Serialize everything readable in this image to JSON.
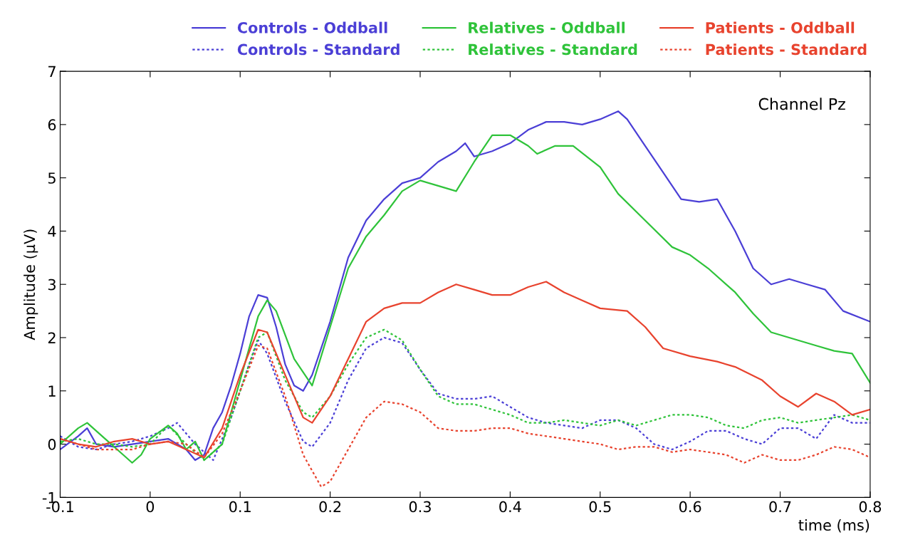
{
  "chart_data": {
    "type": "line",
    "ylabel": "Amplitude (µV)",
    "xlabel": "time (ms)",
    "annotations": [
      "Channel Pz"
    ],
    "xlim": [
      -0.1,
      0.8
    ],
    "xticks": [
      -0.1,
      0,
      0.1,
      0.2,
      0.3,
      0.4,
      0.5,
      0.6,
      0.7,
      0.8
    ],
    "ylim": [
      -1,
      7
    ],
    "yticks": [
      -1,
      0,
      1,
      2,
      3,
      4,
      5,
      6,
      7
    ],
    "grid": false,
    "legend": "top",
    "marker": "none",
    "series": [
      {
        "name": "Controls - Oddball",
        "color": "#4b3fd6",
        "line_style": "solid",
        "x": [
          -0.1,
          -0.08,
          -0.07,
          -0.06,
          -0.04,
          -0.02,
          0,
          0.02,
          0.03,
          0.04,
          0.05,
          0.06,
          0.07,
          0.08,
          0.09,
          0.1,
          0.11,
          0.12,
          0.13,
          0.14,
          0.15,
          0.16,
          0.17,
          0.18,
          0.2,
          0.22,
          0.24,
          0.26,
          0.28,
          0.3,
          0.32,
          0.34,
          0.35,
          0.36,
          0.38,
          0.4,
          0.42,
          0.44,
          0.46,
          0.48,
          0.5,
          0.52,
          0.53,
          0.55,
          0.57,
          0.59,
          0.61,
          0.63,
          0.65,
          0.67,
          0.69,
          0.71,
          0.73,
          0.75,
          0.77,
          0.8
        ],
        "values": [
          -0.1,
          0.15,
          0.3,
          0.0,
          -0.05,
          0.0,
          0.05,
          0.1,
          0.0,
          -0.1,
          -0.3,
          -0.2,
          0.3,
          0.6,
          1.1,
          1.7,
          2.4,
          2.8,
          2.75,
          2.2,
          1.5,
          1.1,
          1.0,
          1.3,
          2.3,
          3.5,
          4.2,
          4.6,
          4.9,
          5.0,
          5.3,
          5.5,
          5.65,
          5.4,
          5.5,
          5.65,
          5.9,
          6.05,
          6.05,
          6.0,
          6.1,
          6.25,
          6.1,
          5.6,
          5.1,
          4.6,
          4.55,
          4.6,
          4.0,
          3.3,
          3.0,
          3.1,
          3.0,
          2.9,
          2.5,
          2.3
        ]
      },
      {
        "name": "Controls - Standard",
        "color": "#4b3fd6",
        "line_style": "dotted",
        "x": [
          -0.1,
          -0.08,
          -0.06,
          -0.04,
          -0.02,
          0,
          0.02,
          0.03,
          0.05,
          0.07,
          0.09,
          0.11,
          0.12,
          0.13,
          0.15,
          0.17,
          0.18,
          0.2,
          0.22,
          0.24,
          0.26,
          0.28,
          0.3,
          0.32,
          0.34,
          0.36,
          0.38,
          0.4,
          0.42,
          0.44,
          0.46,
          0.48,
          0.5,
          0.52,
          0.54,
          0.56,
          0.58,
          0.6,
          0.62,
          0.64,
          0.66,
          0.68,
          0.7,
          0.72,
          0.74,
          0.76,
          0.78,
          0.8
        ],
        "values": [
          0.15,
          -0.05,
          -0.1,
          0.0,
          0.05,
          0.15,
          0.3,
          0.4,
          0.0,
          -0.3,
          0.5,
          1.5,
          1.95,
          1.7,
          0.8,
          0.05,
          -0.05,
          0.4,
          1.2,
          1.8,
          2.0,
          1.9,
          1.4,
          0.95,
          0.85,
          0.85,
          0.9,
          0.7,
          0.5,
          0.4,
          0.35,
          0.3,
          0.45,
          0.45,
          0.3,
          0.0,
          -0.1,
          0.05,
          0.25,
          0.25,
          0.1,
          0.0,
          0.3,
          0.3,
          0.1,
          0.55,
          0.4,
          0.4
        ]
      },
      {
        "name": "Relatives - Oddball",
        "color": "#2fc33a",
        "line_style": "solid",
        "x": [
          -0.1,
          -0.08,
          -0.07,
          -0.05,
          -0.03,
          -0.02,
          -0.01,
          0,
          0.02,
          0.03,
          0.04,
          0.05,
          0.06,
          0.08,
          0.1,
          0.12,
          0.13,
          0.14,
          0.16,
          0.18,
          0.2,
          0.22,
          0.24,
          0.26,
          0.28,
          0.3,
          0.32,
          0.34,
          0.36,
          0.38,
          0.4,
          0.42,
          0.43,
          0.45,
          0.47,
          0.5,
          0.52,
          0.55,
          0.58,
          0.6,
          0.62,
          0.65,
          0.67,
          0.69,
          0.71,
          0.74,
          0.76,
          0.78,
          0.8
        ],
        "values": [
          0.0,
          0.3,
          0.4,
          0.1,
          -0.2,
          -0.35,
          -0.2,
          0.1,
          0.35,
          0.2,
          -0.1,
          0.05,
          -0.3,
          0.0,
          1.2,
          2.4,
          2.7,
          2.5,
          1.6,
          1.1,
          2.2,
          3.3,
          3.9,
          4.3,
          4.75,
          4.95,
          4.85,
          4.75,
          5.3,
          5.8,
          5.8,
          5.6,
          5.45,
          5.6,
          5.6,
          5.2,
          4.7,
          4.2,
          3.7,
          3.55,
          3.3,
          2.85,
          2.45,
          2.1,
          2.0,
          1.85,
          1.75,
          1.7,
          1.15
        ]
      },
      {
        "name": "Relatives - Standard",
        "color": "#2fc33a",
        "line_style": "dotted",
        "x": [
          -0.1,
          -0.08,
          -0.06,
          -0.04,
          -0.02,
          0,
          0.02,
          0.04,
          0.06,
          0.08,
          0.1,
          0.12,
          0.13,
          0.15,
          0.17,
          0.18,
          0.2,
          0.22,
          0.24,
          0.26,
          0.28,
          0.3,
          0.32,
          0.34,
          0.36,
          0.38,
          0.4,
          0.42,
          0.44,
          0.46,
          0.48,
          0.5,
          0.52,
          0.54,
          0.56,
          0.58,
          0.6,
          0.62,
          0.64,
          0.66,
          0.68,
          0.7,
          0.72,
          0.74,
          0.76,
          0.78,
          0.8
        ],
        "values": [
          0.05,
          0.1,
          0.0,
          0.0,
          -0.05,
          0.0,
          0.35,
          0.0,
          -0.3,
          0.0,
          1.0,
          2.0,
          2.1,
          1.2,
          0.6,
          0.5,
          0.9,
          1.5,
          2.0,
          2.15,
          1.95,
          1.4,
          0.9,
          0.75,
          0.75,
          0.65,
          0.55,
          0.4,
          0.4,
          0.45,
          0.4,
          0.35,
          0.45,
          0.35,
          0.45,
          0.55,
          0.55,
          0.5,
          0.35,
          0.3,
          0.45,
          0.5,
          0.4,
          0.45,
          0.5,
          0.55,
          0.45
        ]
      },
      {
        "name": "Patients - Oddball",
        "color": "#e8432e",
        "line_style": "solid",
        "x": [
          -0.1,
          -0.08,
          -0.06,
          -0.04,
          -0.02,
          0,
          0.02,
          0.04,
          0.06,
          0.08,
          0.1,
          0.12,
          0.13,
          0.15,
          0.17,
          0.18,
          0.2,
          0.22,
          0.24,
          0.26,
          0.28,
          0.3,
          0.32,
          0.34,
          0.36,
          0.38,
          0.4,
          0.42,
          0.44,
          0.46,
          0.48,
          0.5,
          0.53,
          0.55,
          0.57,
          0.6,
          0.63,
          0.65,
          0.68,
          0.7,
          0.72,
          0.74,
          0.76,
          0.78,
          0.8
        ],
        "values": [
          0.1,
          0.0,
          -0.05,
          0.05,
          0.1,
          0.0,
          0.05,
          -0.1,
          -0.25,
          0.3,
          1.3,
          2.15,
          2.1,
          1.3,
          0.5,
          0.4,
          0.9,
          1.6,
          2.3,
          2.55,
          2.65,
          2.65,
          2.85,
          3.0,
          2.9,
          2.8,
          2.8,
          2.95,
          3.05,
          2.85,
          2.7,
          2.55,
          2.5,
          2.2,
          1.8,
          1.65,
          1.55,
          1.45,
          1.2,
          0.9,
          0.7,
          0.95,
          0.8,
          0.55,
          0.65
        ]
      },
      {
        "name": "Patients - Standard",
        "color": "#e8432e",
        "line_style": "dotted",
        "x": [
          -0.1,
          -0.08,
          -0.06,
          -0.04,
          -0.02,
          0,
          0.02,
          0.04,
          0.06,
          0.08,
          0.1,
          0.12,
          0.13,
          0.15,
          0.17,
          0.19,
          0.2,
          0.22,
          0.24,
          0.26,
          0.28,
          0.3,
          0.32,
          0.34,
          0.36,
          0.38,
          0.4,
          0.42,
          0.44,
          0.46,
          0.48,
          0.5,
          0.52,
          0.54,
          0.56,
          0.58,
          0.6,
          0.62,
          0.64,
          0.66,
          0.68,
          0.7,
          0.72,
          0.74,
          0.76,
          0.78,
          0.8
        ],
        "values": [
          0.1,
          0.0,
          -0.1,
          -0.1,
          -0.1,
          0.0,
          0.05,
          0.0,
          -0.25,
          0.2,
          1.0,
          1.85,
          1.8,
          0.9,
          -0.2,
          -0.8,
          -0.7,
          -0.1,
          0.5,
          0.8,
          0.75,
          0.6,
          0.3,
          0.25,
          0.25,
          0.3,
          0.3,
          0.2,
          0.15,
          0.1,
          0.05,
          0.0,
          -0.1,
          -0.05,
          -0.05,
          -0.15,
          -0.1,
          -0.15,
          -0.2,
          -0.35,
          -0.2,
          -0.3,
          -0.3,
          -0.2,
          -0.05,
          -0.1,
          -0.25
        ]
      }
    ]
  }
}
